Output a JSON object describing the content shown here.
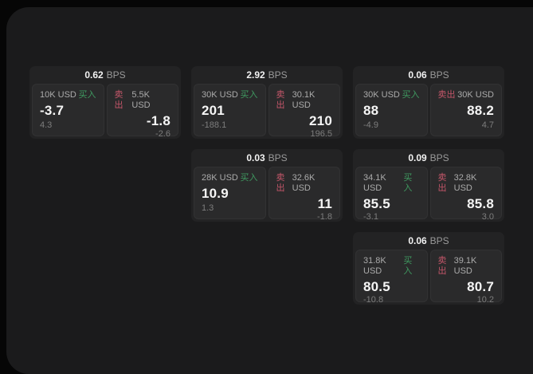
{
  "labels": {
    "bps_unit": "BPS",
    "buy": "买入",
    "sell": "卖出"
  },
  "colors": {
    "outer_background": "#060606",
    "panel_background": "#1b1b1c",
    "card_background": "#232324",
    "tile_background": "#2a2a2b",
    "value_white": "#f5f5f5",
    "label_gray": "#ababab",
    "sub_gray": "#7d7d7d",
    "buy_green": "#3f9960",
    "sell_red": "#c4566a"
  },
  "cards": [
    {
      "bps": "0.62",
      "grid": {
        "col": 1,
        "row": 1
      },
      "buy": {
        "size": "10K USD",
        "value": "-3.7",
        "change": "4.3"
      },
      "sell": {
        "size": "5.5K USD",
        "value": "-1.8",
        "change": "-2.6"
      }
    },
    {
      "bps": "2.92",
      "grid": {
        "col": 2,
        "row": 1
      },
      "buy": {
        "size": "30K USD",
        "value": "201",
        "change": "-188.1"
      },
      "sell": {
        "size": "30.1K USD",
        "value": "210",
        "change": "196.5"
      }
    },
    {
      "bps": "0.06",
      "grid": {
        "col": 3,
        "row": 1
      },
      "buy": {
        "size": "30K USD",
        "value": "88",
        "change": "-4.9"
      },
      "sell": {
        "size": "30K USD",
        "value": "88.2",
        "change": "4.7"
      }
    },
    {
      "bps": "0.03",
      "grid": {
        "col": 2,
        "row": 2
      },
      "buy": {
        "size": "28K USD",
        "value": "10.9",
        "change": "1.3"
      },
      "sell": {
        "size": "32.6K USD",
        "value": "11",
        "change": "-1.8"
      }
    },
    {
      "bps": "0.09",
      "grid": {
        "col": 3,
        "row": 2
      },
      "buy": {
        "size": "34.1K USD",
        "value": "85.5",
        "change": "-3.1"
      },
      "sell": {
        "size": "32.8K USD",
        "value": "85.8",
        "change": "3.0"
      }
    },
    {
      "bps": "0.06",
      "grid": {
        "col": 3,
        "row": 3
      },
      "buy": {
        "size": "31.8K USD",
        "value": "80.5",
        "change": "-10.8"
      },
      "sell": {
        "size": "39.1K USD",
        "value": "80.7",
        "change": "10.2"
      }
    }
  ]
}
